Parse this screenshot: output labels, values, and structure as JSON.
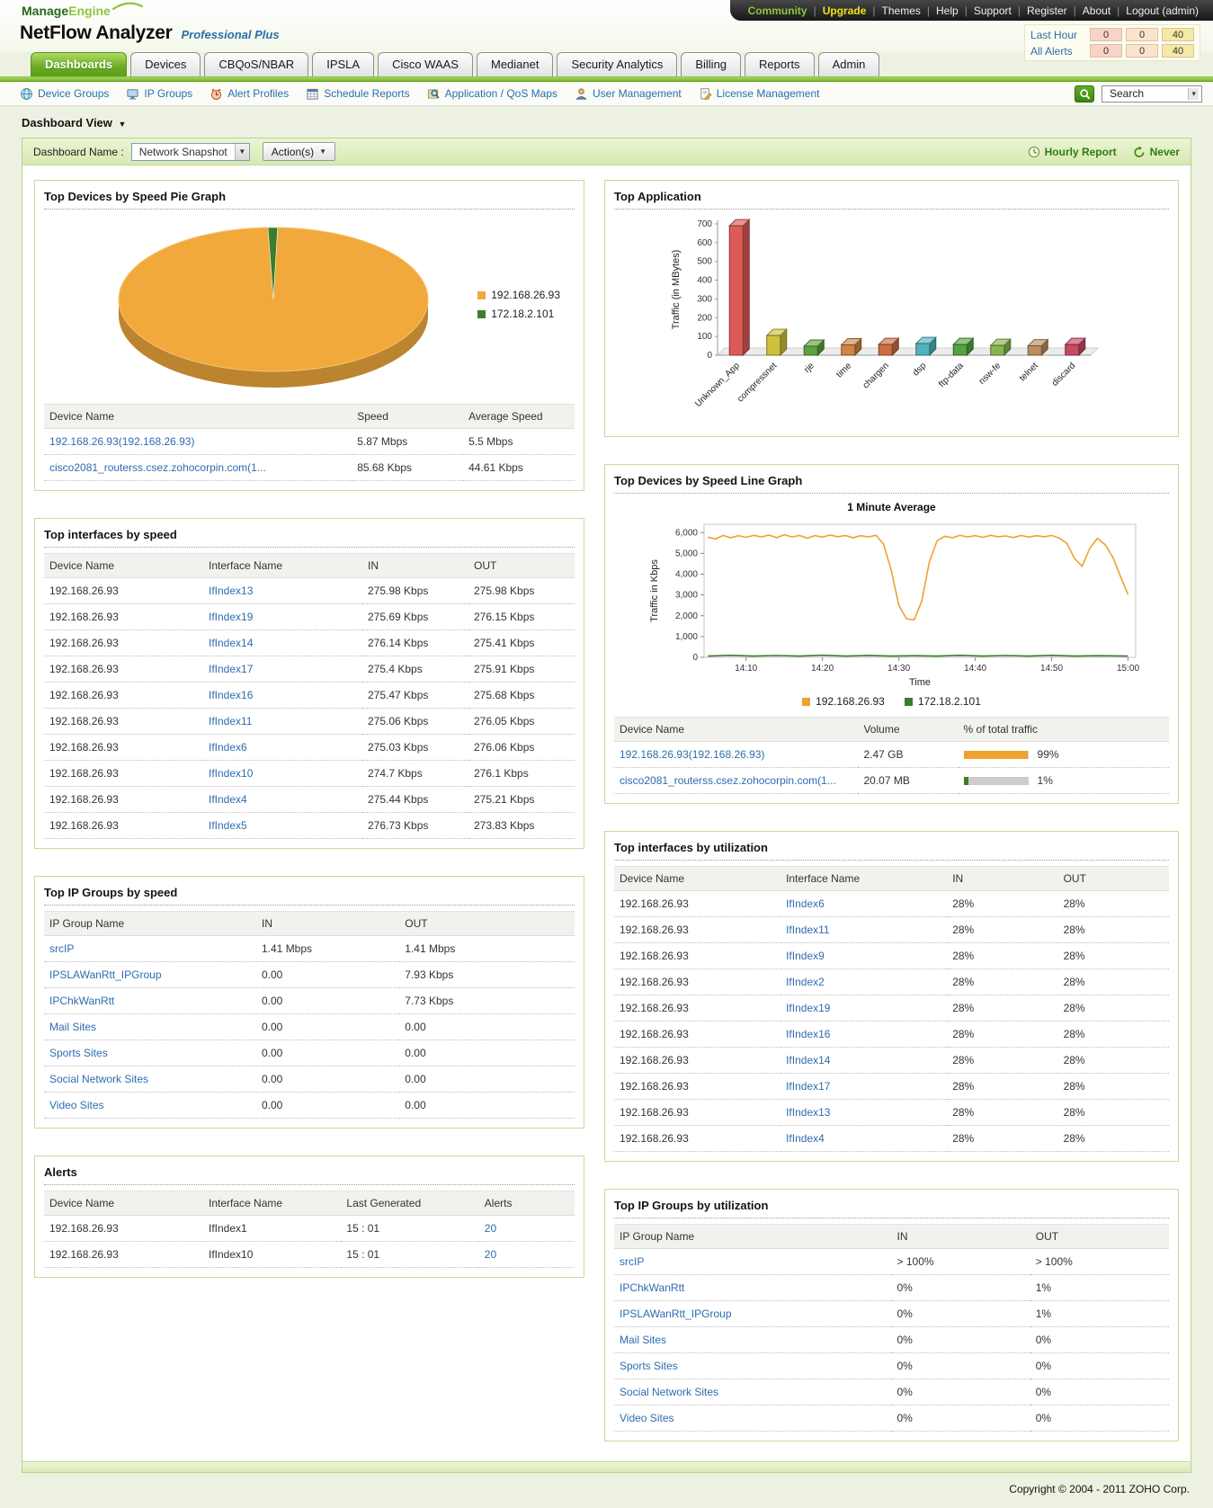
{
  "page": {
    "footer": "Copyright © 2004 - 2011 ZOHO Corp."
  },
  "header": {
    "logo": {
      "part1": "Manage",
      "part2": "Engine"
    },
    "product": "NetFlow Analyzer",
    "edition": "Professional Plus",
    "top_links": [
      {
        "label": "Community",
        "color": "#8dc63f"
      },
      {
        "label": "Upgrade",
        "color": "#f3e215"
      },
      {
        "label": "Themes",
        "color": "#eeeeee"
      },
      {
        "label": "Help",
        "color": "#eeeeee"
      },
      {
        "label": "Support",
        "color": "#eeeeee"
      },
      {
        "label": "Register",
        "color": "#eeeeee"
      },
      {
        "label": "About",
        "color": "#eeeeee"
      },
      {
        "label": "Logout (admin)",
        "color": "#eeeeee"
      }
    ],
    "alert_summary": [
      {
        "label": "Last Hour",
        "values": [
          "0",
          "0",
          "40"
        ]
      },
      {
        "label": "All Alerts",
        "values": [
          "0",
          "0",
          "40"
        ]
      }
    ],
    "alert_colors": [
      "#f8d3c7",
      "#fbe3cd",
      "#f5e9a5"
    ]
  },
  "tabs": [
    {
      "label": "Dashboards",
      "active": true
    },
    {
      "label": "Devices"
    },
    {
      "label": "CBQoS/NBAR"
    },
    {
      "label": "IPSLA"
    },
    {
      "label": "Cisco WAAS"
    },
    {
      "label": "Medianet"
    },
    {
      "label": "Security Analytics"
    },
    {
      "label": "Billing"
    },
    {
      "label": "Reports"
    },
    {
      "label": "Admin"
    }
  ],
  "subnav": {
    "items": [
      {
        "label": "Device Groups"
      },
      {
        "label": "IP Groups"
      },
      {
        "label": "Alert Profiles"
      },
      {
        "label": "Schedule Reports"
      },
      {
        "label": "Application / QoS Maps"
      },
      {
        "label": "User Management"
      },
      {
        "label": "License Management"
      }
    ],
    "search_value": "Search"
  },
  "breadcrumb": "Dashboard View",
  "toolbar": {
    "label": "Dashboard Name :",
    "dashboard_select": "Network Snapshot",
    "actions": "Action(s)",
    "hourly_report": "Hourly Report",
    "refresh_status": "Never"
  },
  "panels": {
    "pie": {
      "title": "Top Devices by Speed Pie Graph",
      "chart_data": {
        "type": "pie",
        "slices": [
          {
            "label": "192.168.26.93",
            "value": 99,
            "color": "#f1a93c"
          },
          {
            "label": "172.18.2.101",
            "value": 1,
            "color": "#3c7d2c"
          }
        ]
      },
      "table": {
        "headers": [
          "Device Name",
          "Speed",
          "Average Speed"
        ],
        "rows": [
          [
            "192.168.26.93(192.168.26.93)",
            "5.87 Mbps",
            "5.5 Mbps"
          ],
          [
            "cisco2081_routerss.csez.zohocorpin.com(1...",
            "85.68 Kbps",
            "44.61 Kbps"
          ]
        ]
      }
    },
    "interfaces_speed": {
      "title": "Top interfaces by speed",
      "table": {
        "headers": [
          "Device Name",
          "Interface Name",
          "IN",
          "OUT"
        ],
        "rows": [
          [
            "192.168.26.93",
            "IfIndex13",
            "275.98 Kbps",
            "275.98 Kbps"
          ],
          [
            "192.168.26.93",
            "IfIndex19",
            "275.69 Kbps",
            "276.15 Kbps"
          ],
          [
            "192.168.26.93",
            "IfIndex14",
            "276.14 Kbps",
            "275.41 Kbps"
          ],
          [
            "192.168.26.93",
            "IfIndex17",
            "275.4 Kbps",
            "275.91 Kbps"
          ],
          [
            "192.168.26.93",
            "IfIndex16",
            "275.47 Kbps",
            "275.68 Kbps"
          ],
          [
            "192.168.26.93",
            "IfIndex11",
            "275.06 Kbps",
            "276.05 Kbps"
          ],
          [
            "192.168.26.93",
            "IfIndex6",
            "275.03 Kbps",
            "276.06 Kbps"
          ],
          [
            "192.168.26.93",
            "IfIndex10",
            "274.7 Kbps",
            "276.1 Kbps"
          ],
          [
            "192.168.26.93",
            "IfIndex4",
            "275.44 Kbps",
            "275.21 Kbps"
          ],
          [
            "192.168.26.93",
            "IfIndex5",
            "276.73 Kbps",
            "273.83 Kbps"
          ]
        ]
      }
    },
    "ip_groups_speed": {
      "title": "Top IP Groups by speed",
      "table": {
        "headers": [
          "IP Group Name",
          "IN",
          "OUT"
        ],
        "rows": [
          [
            "srcIP",
            "1.41 Mbps",
            "1.41 Mbps"
          ],
          [
            "IPSLAWanRtt_IPGroup",
            "0.00",
            "7.93 Kbps"
          ],
          [
            "IPChkWanRtt",
            "0.00",
            "7.73 Kbps"
          ],
          [
            "Mail Sites",
            "0.00",
            "0.00"
          ],
          [
            "Sports Sites",
            "0.00",
            "0.00"
          ],
          [
            "Social Network Sites",
            "0.00",
            "0.00"
          ],
          [
            "Video Sites",
            "0.00",
            "0.00"
          ]
        ]
      }
    },
    "alerts": {
      "title": "Alerts",
      "table": {
        "headers": [
          "Device Name",
          "Interface Name",
          "Last Generated",
          "Alerts"
        ],
        "rows": [
          [
            "192.168.26.93",
            "IfIndex1",
            "15 : 01",
            "20"
          ],
          [
            "192.168.26.93",
            "IfIndex10",
            "15 : 01",
            "20"
          ]
        ]
      }
    },
    "top_application": {
      "title": "Top Application",
      "chart_data": {
        "type": "bar",
        "ylabel": "Traffic (in MBytes)",
        "ymax": 700,
        "yticks": [
          0,
          100,
          200,
          300,
          400,
          500,
          600,
          700
        ],
        "categories": [
          "Unknown_App",
          "compressnet",
          "rje",
          "time",
          "chargen",
          "dsp",
          "ftp-data",
          "nsw-fe",
          "telnet",
          "discard"
        ],
        "values": [
          690,
          105,
          48,
          55,
          57,
          62,
          57,
          52,
          50,
          57
        ],
        "colors": [
          "#dd5b57",
          "#cfc13c",
          "#5da23c",
          "#cd8445",
          "#c96e41",
          "#4fb3be",
          "#55a33e",
          "#88b44e",
          "#bc8d5e",
          "#c64a60"
        ]
      }
    },
    "line_graph": {
      "title": "Top Devices by Speed Line Graph",
      "chart_data": {
        "type": "line",
        "chart_title": "1 Minute Average",
        "ylabel": "Traffic in Kbps",
        "xlabel": "Time",
        "ylim": [
          0,
          6400
        ],
        "yticks": [
          0,
          1000,
          2000,
          3000,
          4000,
          5000,
          6000
        ],
        "ytick_labels": [
          "0",
          "1,000",
          "2,000",
          "3,000",
          "4,000",
          "5,000",
          "6,000"
        ],
        "xlim": [
          4.5,
          61
        ],
        "xticks": [
          10,
          20,
          30,
          40,
          50,
          60
        ],
        "xtick_labels": [
          "14:10",
          "14:20",
          "14:30",
          "14:40",
          "14:50",
          "15:00"
        ],
        "series": [
          {
            "name": "192.168.26.93",
            "color": "#f0a12f",
            "points": [
              [
                5,
                5780
              ],
              [
                6,
                5690
              ],
              [
                7,
                5860
              ],
              [
                8,
                5750
              ],
              [
                9,
                5850
              ],
              [
                10,
                5770
              ],
              [
                11,
                5870
              ],
              [
                12,
                5790
              ],
              [
                13,
                5880
              ],
              [
                14,
                5750
              ],
              [
                15,
                5900
              ],
              [
                16,
                5790
              ],
              [
                17,
                5860
              ],
              [
                18,
                5730
              ],
              [
                19,
                5850
              ],
              [
                20,
                5780
              ],
              [
                21,
                5880
              ],
              [
                22,
                5800
              ],
              [
                23,
                5860
              ],
              [
                24,
                5750
              ],
              [
                25,
                5850
              ],
              [
                26,
                5790
              ],
              [
                27,
                5870
              ],
              [
                28,
                5450
              ],
              [
                29,
                4200
              ],
              [
                30,
                2500
              ],
              [
                31,
                1850
              ],
              [
                32,
                1800
              ],
              [
                33,
                2700
              ],
              [
                34,
                4600
              ],
              [
                35,
                5600
              ],
              [
                36,
                5820
              ],
              [
                37,
                5750
              ],
              [
                38,
                5870
              ],
              [
                39,
                5790
              ],
              [
                40,
                5850
              ],
              [
                41,
                5770
              ],
              [
                42,
                5870
              ],
              [
                43,
                5800
              ],
              [
                44,
                5840
              ],
              [
                45,
                5760
              ],
              [
                46,
                5860
              ],
              [
                47,
                5780
              ],
              [
                48,
                5850
              ],
              [
                49,
                5800
              ],
              [
                50,
                5860
              ],
              [
                51,
                5740
              ],
              [
                52,
                5480
              ],
              [
                53,
                4750
              ],
              [
                54,
                4380
              ],
              [
                55,
                5250
              ],
              [
                56,
                5720
              ],
              [
                57,
                5420
              ],
              [
                58,
                4820
              ],
              [
                59,
                3900
              ],
              [
                60,
                3020
              ]
            ]
          },
          {
            "name": "172.18.2.101",
            "color": "#3c7d2c",
            "points": [
              [
                5,
                60
              ],
              [
                8,
                95
              ],
              [
                11,
                60
              ],
              [
                14,
                85
              ],
              [
                17,
                60
              ],
              [
                20,
                100
              ],
              [
                23,
                60
              ],
              [
                26,
                90
              ],
              [
                29,
                60
              ],
              [
                32,
                80
              ],
              [
                35,
                60
              ],
              [
                38,
                95
              ],
              [
                41,
                60
              ],
              [
                44,
                85
              ],
              [
                47,
                60
              ],
              [
                50,
                95
              ],
              [
                53,
                60
              ],
              [
                56,
                80
              ],
              [
                60,
                60
              ]
            ]
          }
        ]
      },
      "table": {
        "headers": [
          "Device Name",
          "Volume",
          "% of total traffic"
        ],
        "rows": [
          [
            "192.168.26.93(192.168.26.93)",
            "2.47 GB",
            {
              "text": "99%",
              "fill": 99,
              "color": "#f0a12f"
            }
          ],
          [
            "cisco2081_routerss.csez.zohocorpin.com(1...",
            "20.07 MB",
            {
              "text": "1%",
              "fill": 7,
              "color": "#3c7d2c"
            }
          ]
        ]
      }
    },
    "interfaces_util": {
      "title": "Top interfaces by utilization",
      "table": {
        "headers": [
          "Device Name",
          "Interface Name",
          "IN",
          "OUT"
        ],
        "rows": [
          [
            "192.168.26.93",
            "IfIndex6",
            "28%",
            "28%"
          ],
          [
            "192.168.26.93",
            "IfIndex11",
            "28%",
            "28%"
          ],
          [
            "192.168.26.93",
            "IfIndex9",
            "28%",
            "28%"
          ],
          [
            "192.168.26.93",
            "IfIndex2",
            "28%",
            "28%"
          ],
          [
            "192.168.26.93",
            "IfIndex19",
            "28%",
            "28%"
          ],
          [
            "192.168.26.93",
            "IfIndex16",
            "28%",
            "28%"
          ],
          [
            "192.168.26.93",
            "IfIndex14",
            "28%",
            "28%"
          ],
          [
            "192.168.26.93",
            "IfIndex17",
            "28%",
            "28%"
          ],
          [
            "192.168.26.93",
            "IfIndex13",
            "28%",
            "28%"
          ],
          [
            "192.168.26.93",
            "IfIndex4",
            "28%",
            "28%"
          ]
        ]
      }
    },
    "ip_groups_util": {
      "title": "Top IP Groups by utilization",
      "table": {
        "headers": [
          "IP Group Name",
          "IN",
          "OUT"
        ],
        "rows": [
          [
            "srcIP",
            "> 100%",
            "> 100%"
          ],
          [
            "IPChkWanRtt",
            "0%",
            "1%"
          ],
          [
            "IPSLAWanRtt_IPGroup",
            "0%",
            "1%"
          ],
          [
            "Mail Sites",
            "0%",
            "0%"
          ],
          [
            "Sports Sites",
            "0%",
            "0%"
          ],
          [
            "Social Network Sites",
            "0%",
            "0%"
          ],
          [
            "Video Sites",
            "0%",
            "0%"
          ]
        ]
      }
    }
  }
}
